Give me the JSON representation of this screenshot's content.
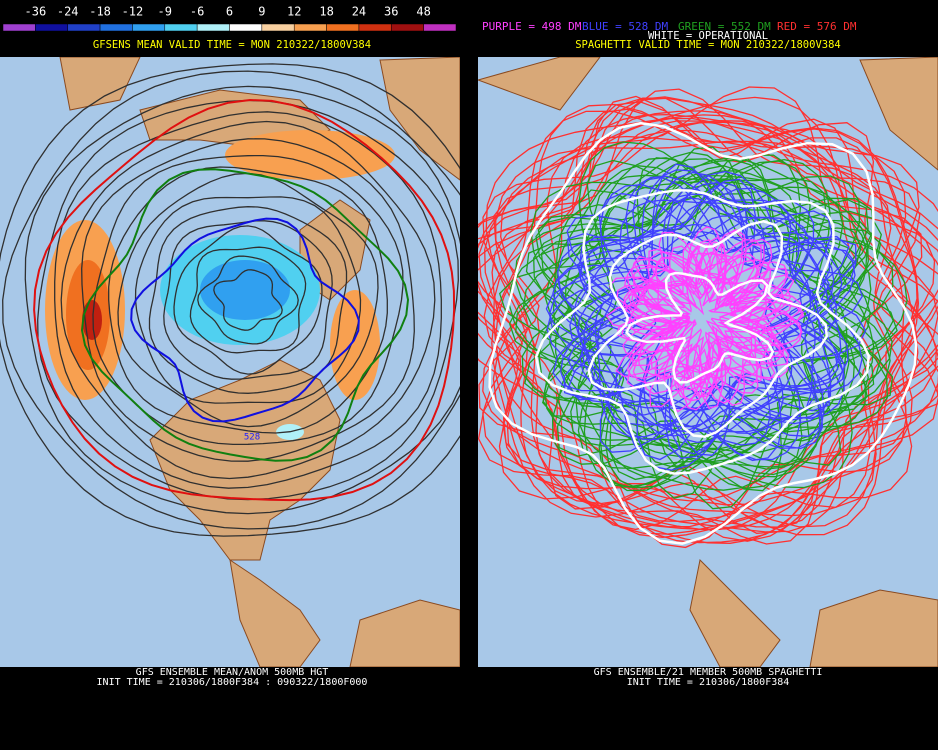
{
  "left_panel": {
    "colorbar": {
      "labels": [
        "-36",
        "-24",
        "-18",
        "-12",
        "-9",
        "-6",
        "6",
        "9",
        "12",
        "18",
        "24",
        "36",
        "48"
      ],
      "colors": [
        "#a040d0",
        "#1010a0",
        "#2040c8",
        "#2070e0",
        "#30a0f0",
        "#50d0f0",
        "#b0f0f8",
        "#ffffff",
        "#f8d0a0",
        "#f8a050",
        "#f07020",
        "#d03010",
        "#a01010",
        "#c030c0"
      ]
    },
    "title": "GFSENS MEAN VALID TIME = MON 210322/1800V384",
    "contour_label": "528",
    "footer": [
      "GFS ENSEMBLE MEAN/ANOM 500MB HGT",
      "INIT TIME = 210306/1800F384 : 090322/1800F000"
    ]
  },
  "right_panel": {
    "legend": [
      {
        "text": "PURPLE = 498 DM",
        "color": "#ff40ff"
      },
      {
        "text": "BLUE = 528 DM",
        "color": "#4040ff"
      },
      {
        "text": "GREEN = 552 DM",
        "color": "#20a020"
      },
      {
        "text": "RED = 576 DM",
        "color": "#ff3030"
      }
    ],
    "title": "SPAGHETTI VALID TIME = MON 210322/1800V384",
    "operational": "WHITE = OPERATIONAL",
    "footer": [
      "GFS ENSEMBLE/21 MEMBER 500MB SPAGHETTI",
      "INIT TIME = 210306/1800F384"
    ]
  }
}
